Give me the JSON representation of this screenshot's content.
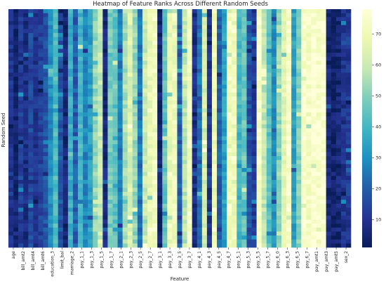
{
  "chart_data": {
    "type": "heatmap",
    "title": "Heatmap of Feature Ranks Across Different Random Seeds",
    "xlabel": "Feature",
    "ylabel": "Random Seed",
    "x_tick_labels": [
      "age",
      "bill_amt2",
      "bill_amt4",
      "bill_amt6",
      "education_3",
      "limit_bal",
      "marriage_2",
      "pay_1_1",
      "pay_1_3",
      "pay_1_5",
      "pay_1_7",
      "pay_2_1",
      "pay_2_3",
      "pay_2_5",
      "pay_2_7",
      "pay_3_1",
      "pay_3_3",
      "pay_3_5",
      "pay_3_7",
      "pay_4_1",
      "pay_4_3",
      "pay_4_5",
      "pay_4_7",
      "pay_5_1",
      "pay_5_3",
      "pay_5_5",
      "pay_5_7",
      "pay_6_0",
      "pay_6_3",
      "pay_6_5",
      "pay_6_7",
      "pay_amt1",
      "pay_amt3",
      "pay_amt5",
      "sex_2"
    ],
    "rows": 60,
    "column_base_ranks": [
      10,
      4,
      12,
      8,
      15,
      10,
      14,
      18,
      30,
      42,
      18,
      6,
      38,
      20,
      40,
      28,
      34,
      52,
      60,
      6,
      48,
      44,
      26,
      55,
      64,
      52,
      24,
      60,
      68,
      72,
      4,
      45,
      68,
      70,
      20,
      58,
      72,
      8,
      24,
      62,
      10,
      70,
      20,
      34,
      72,
      70,
      40,
      46,
      18,
      12,
      74,
      58,
      44,
      30,
      52,
      66,
      74,
      34,
      50,
      74,
      72,
      76,
      74,
      76,
      6,
      4,
      6,
      10,
      12
    ],
    "colorbar": {
      "ticks": [
        10,
        20,
        30,
        40,
        50,
        60,
        70
      ],
      "vmin": 1,
      "vmax": 78
    },
    "colormap": [
      "#081d58",
      "#253494",
      "#225ea8",
      "#1d91c0",
      "#41b6c4",
      "#7fcdbb",
      "#c7e9b4",
      "#edf8b1",
      "#ffffd9"
    ]
  }
}
